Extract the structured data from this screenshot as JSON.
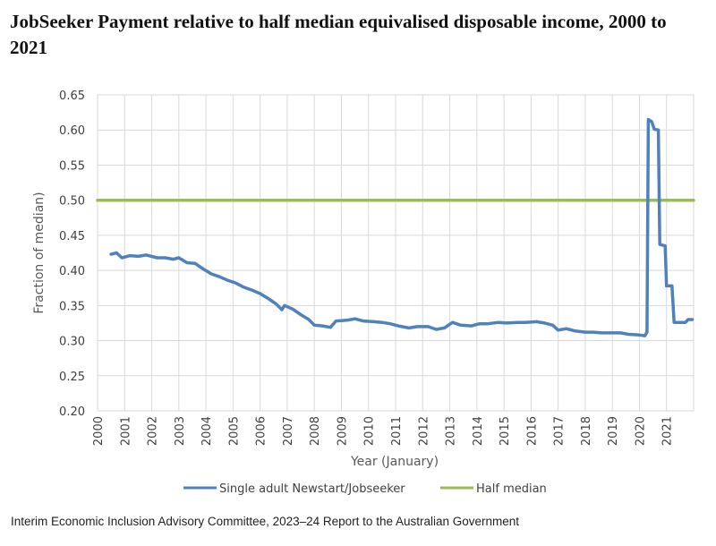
{
  "title": "JobSeeker Payment relative to half median equivalised disposable income, 2000 to 2021",
  "source": "Interim Economic Inclusion Advisory Committee, 2023–24 Report to the Australian Government",
  "chart_data": {
    "type": "line",
    "title": "JobSeeker Payment relative to half median equivalised disposable income, 2000 to 2021",
    "xlabel": "Year (January)",
    "ylabel": "Fraction of median)",
    "xlim": [
      2000,
      2022
    ],
    "ylim": [
      0.2,
      0.65
    ],
    "x_ticks": [
      "2000",
      "2001",
      "2002",
      "2003",
      "2004",
      "2005",
      "2006",
      "2007",
      "2008",
      "2009",
      "2010",
      "2011",
      "2012",
      "2013",
      "2014",
      "2015",
      "2016",
      "2017",
      "2018",
      "2019",
      "2020",
      "2021"
    ],
    "y_ticks": [
      "0.20",
      "0.25",
      "0.30",
      "0.35",
      "0.40",
      "0.45",
      "0.50",
      "0.55",
      "0.60",
      "0.65"
    ],
    "grid": true,
    "legend_position": "bottom",
    "series": [
      {
        "name": "Single adult Newstart/Jobseeker",
        "color": "#4f81bd",
        "points": [
          [
            2000.5,
            0.423
          ],
          [
            2000.7,
            0.425
          ],
          [
            2000.9,
            0.418
          ],
          [
            2001.2,
            0.421
          ],
          [
            2001.5,
            0.42
          ],
          [
            2001.8,
            0.422
          ],
          [
            2002.2,
            0.418
          ],
          [
            2002.5,
            0.418
          ],
          [
            2002.8,
            0.416
          ],
          [
            2003.0,
            0.418
          ],
          [
            2003.3,
            0.411
          ],
          [
            2003.6,
            0.41
          ],
          [
            2003.9,
            0.402
          ],
          [
            2004.2,
            0.395
          ],
          [
            2004.5,
            0.391
          ],
          [
            2004.8,
            0.386
          ],
          [
            2005.1,
            0.382
          ],
          [
            2005.4,
            0.376
          ],
          [
            2005.7,
            0.372
          ],
          [
            2006.0,
            0.367
          ],
          [
            2006.3,
            0.36
          ],
          [
            2006.6,
            0.352
          ],
          [
            2006.8,
            0.344
          ],
          [
            2006.9,
            0.35
          ],
          [
            2007.2,
            0.345
          ],
          [
            2007.5,
            0.337
          ],
          [
            2007.8,
            0.33
          ],
          [
            2008.0,
            0.322
          ],
          [
            2008.3,
            0.321
          ],
          [
            2008.6,
            0.319
          ],
          [
            2008.8,
            0.328
          ],
          [
            2009.2,
            0.329
          ],
          [
            2009.5,
            0.331
          ],
          [
            2009.8,
            0.328
          ],
          [
            2010.2,
            0.327
          ],
          [
            2010.5,
            0.326
          ],
          [
            2010.8,
            0.324
          ],
          [
            2011.1,
            0.321
          ],
          [
            2011.5,
            0.318
          ],
          [
            2011.8,
            0.32
          ],
          [
            2012.2,
            0.32
          ],
          [
            2012.5,
            0.316
          ],
          [
            2012.8,
            0.318
          ],
          [
            2013.1,
            0.326
          ],
          [
            2013.4,
            0.322
          ],
          [
            2013.8,
            0.321
          ],
          [
            2014.1,
            0.324
          ],
          [
            2014.4,
            0.324
          ],
          [
            2014.8,
            0.326
          ],
          [
            2015.1,
            0.325
          ],
          [
            2015.5,
            0.326
          ],
          [
            2015.8,
            0.326
          ],
          [
            2016.2,
            0.327
          ],
          [
            2016.5,
            0.325
          ],
          [
            2016.8,
            0.322
          ],
          [
            2017.0,
            0.315
          ],
          [
            2017.3,
            0.317
          ],
          [
            2017.6,
            0.314
          ],
          [
            2018.0,
            0.312
          ],
          [
            2018.3,
            0.312
          ],
          [
            2018.6,
            0.311
          ],
          [
            2019.0,
            0.311
          ],
          [
            2019.3,
            0.311
          ],
          [
            2019.6,
            0.309
          ],
          [
            2020.0,
            0.308
          ],
          [
            2020.2,
            0.307
          ],
          [
            2020.28,
            0.312
          ],
          [
            2020.33,
            0.615
          ],
          [
            2020.45,
            0.612
          ],
          [
            2020.55,
            0.601
          ],
          [
            2020.7,
            0.6
          ],
          [
            2020.75,
            0.437
          ],
          [
            2020.95,
            0.435
          ],
          [
            2021.0,
            0.378
          ],
          [
            2021.2,
            0.378
          ],
          [
            2021.28,
            0.326
          ],
          [
            2021.7,
            0.326
          ],
          [
            2021.8,
            0.33
          ],
          [
            2021.95,
            0.33
          ]
        ]
      },
      {
        "name": "Half median",
        "color": "#9bbb59",
        "points": [
          [
            2000,
            0.5
          ],
          [
            2022,
            0.5
          ]
        ]
      }
    ]
  }
}
